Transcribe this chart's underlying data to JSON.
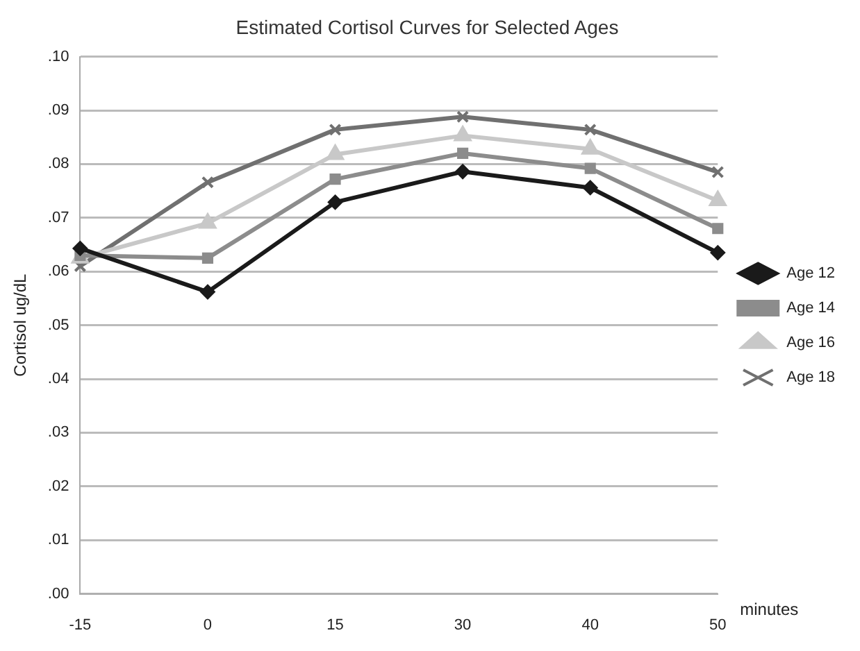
{
  "chart_data": {
    "type": "line",
    "title": "Estimated Cortisol Curves for Selected Ages",
    "ylabel": "Cortisol ug/dL",
    "xlabel": "minutes",
    "categories": [
      "-15",
      "0",
      "15",
      "30",
      "40",
      "50"
    ],
    "series": [
      {
        "name": "Age 12",
        "color": "#1a1a1a",
        "marker": "diamond",
        "values": [
          0.0643,
          0.0562,
          0.0729,
          0.0786,
          0.0756,
          0.0635
        ]
      },
      {
        "name": "Age 14",
        "color": "#8c8c8c",
        "marker": "square",
        "values": [
          0.063,
          0.0625,
          0.0772,
          0.082,
          0.0792,
          0.068
        ]
      },
      {
        "name": "Age 16",
        "color": "#c8c8c8",
        "marker": "triangle",
        "values": [
          0.0625,
          0.069,
          0.0818,
          0.0853,
          0.0828,
          0.0732
        ]
      },
      {
        "name": "Age 18",
        "color": "#707070",
        "marker": "cross",
        "values": [
          0.061,
          0.0766,
          0.0864,
          0.0888,
          0.0864,
          0.0785
        ]
      }
    ],
    "ylim": [
      0,
      0.1
    ],
    "yticks": [
      {
        "value": 0,
        "label": ".00"
      },
      {
        "value": 0.01,
        "label": ".01"
      },
      {
        "value": 0.02,
        "label": ".02"
      },
      {
        "value": 0.03,
        "label": ".03"
      },
      {
        "value": 0.04,
        "label": ".04"
      },
      {
        "value": 0.05,
        "label": ".05"
      },
      {
        "value": 0.06,
        "label": ".06"
      },
      {
        "value": 0.07,
        "label": ".07"
      },
      {
        "value": 0.08,
        "label": ".08"
      },
      {
        "value": 0.09,
        "label": ".09"
      },
      {
        "value": 0.1,
        "label": ".10"
      }
    ],
    "grid": "y",
    "legend": "right",
    "line_style": "solid"
  }
}
